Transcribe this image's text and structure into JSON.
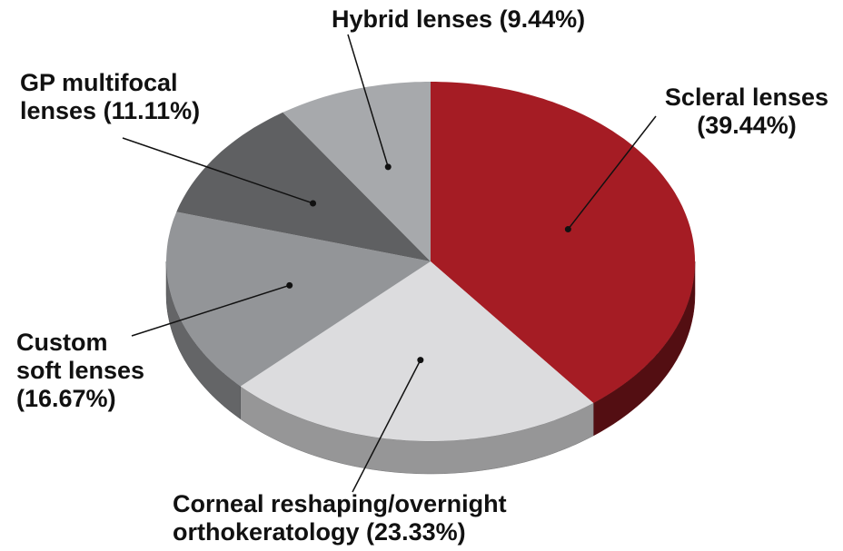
{
  "chart_data": {
    "type": "pie",
    "categories": [
      "Scleral lenses",
      "Corneal reshaping/overnight orthokeratology",
      "Custom soft lenses",
      "GP multifocal lenses",
      "Hybrid lenses"
    ],
    "values": [
      39.44,
      23.33,
      16.67,
      11.11,
      9.44
    ],
    "value_labels": [
      "(39.44%)",
      "(23.33%)",
      "(16.67%)",
      "(11.11%)",
      "(9.44%)"
    ],
    "colors": [
      "#a51c24",
      "#dcdcde",
      "#939598",
      "#5f6062",
      "#a7a9ac"
    ]
  }
}
